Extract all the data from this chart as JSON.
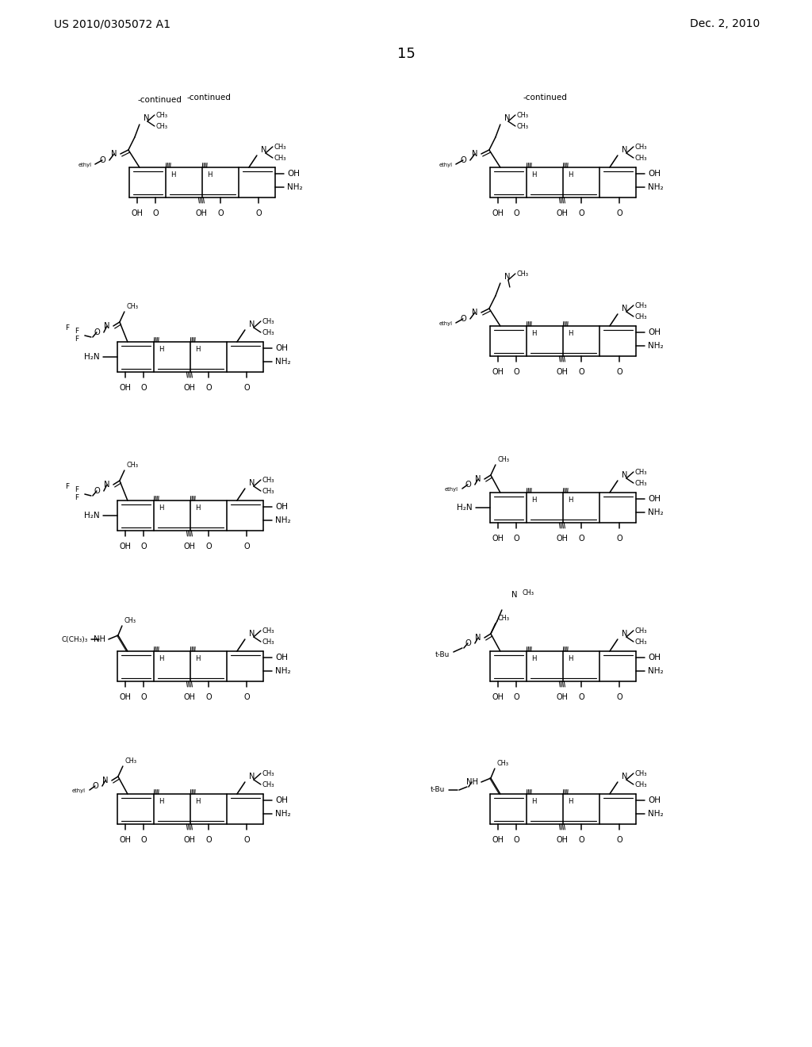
{
  "bg": "#ffffff",
  "header_left": "US 2010/0305072 A1",
  "header_right": "Dec. 2, 2010",
  "page_num": "15",
  "continued": "-continued"
}
